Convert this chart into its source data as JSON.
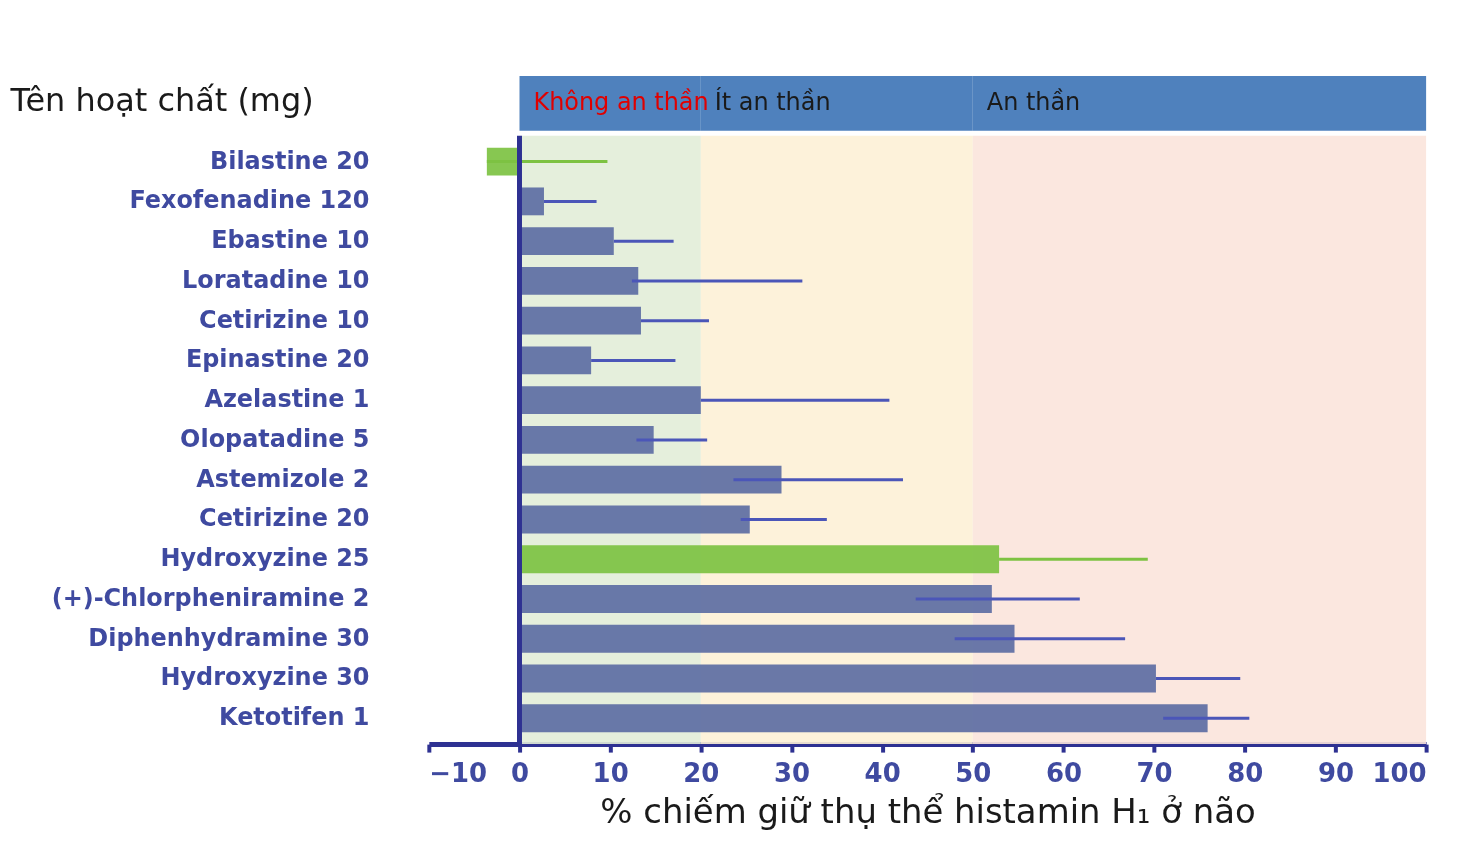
{
  "chart_data": {
    "type": "bar",
    "orientation": "horizontal",
    "ylabel": "Tên hoạt chất (mg)",
    "xlabel": "% chiếm giữ thụ thể  histamin H₁ ở não",
    "categories": [
      "Bilastine 20",
      "Fexofenadine 120",
      "Ebastine 10",
      "Loratadine 10",
      "Cetirizine 10",
      "Epinastine 20",
      "Azelastine 1",
      "Olopatadine 5",
      "Astemizole 2",
      "Cetirizine 20",
      "Hydroxyzine 25",
      "(+)-Chlorpheniramine 2",
      "Diphenhydramine 30",
      "Hydroxyzine 30",
      "Ketotifen 1"
    ],
    "values": [
      -3.6,
      2.7,
      10.4,
      13.1,
      13.4,
      7.9,
      20,
      14.8,
      28.9,
      25.4,
      52.9,
      52.1,
      54.6,
      70.2,
      75.9
    ],
    "errors": [
      [
        -3.6,
        9.7
      ],
      [
        2.7,
        8.5
      ],
      [
        10.4,
        17
      ],
      [
        12.4,
        31.2
      ],
      [
        13.4,
        20.9
      ],
      [
        7.9,
        17.2
      ],
      [
        20,
        40.8
      ],
      [
        12.9,
        20.7
      ],
      [
        23.6,
        42.3
      ],
      [
        24.4,
        33.9
      ],
      [
        52.9,
        69.3
      ],
      [
        43.7,
        61.8
      ],
      [
        48,
        66.8
      ],
      [
        70.2,
        79.5
      ],
      [
        71,
        80.5
      ]
    ],
    "colors": [
      "#7dc242",
      "#5d6ea3",
      "#5d6ea3",
      "#5d6ea3",
      "#5d6ea3",
      "#5d6ea3",
      "#5d6ea3",
      "#5d6ea3",
      "#5d6ea3",
      "#5d6ea3",
      "#7dc242",
      "#5d6ea3",
      "#5d6ea3",
      "#5d6ea3",
      "#5d6ea3"
    ],
    "xlim": [
      -10,
      100
    ],
    "xticks": [
      {
        "value": -10,
        "label": "−10"
      },
      0,
      10,
      20,
      30,
      40,
      50,
      60,
      70,
      80,
      90,
      100
    ],
    "bands": [
      {
        "axis": "x",
        "from": 0,
        "to": 20,
        "label": "Không an thần",
        "color": "#e2edd8"
      },
      {
        "axis": "x",
        "from": 20,
        "to": 50,
        "label": "Ít an thần",
        "color": "#fdf1d6"
      },
      {
        "axis": "x",
        "from": 50,
        "to": 100,
        "label": "An thần",
        "color": "#fbe4dc"
      }
    ],
    "ref_lines": [
      {
        "axis": "x",
        "value": 0,
        "color": "#2e3192"
      }
    ],
    "grid": false
  }
}
